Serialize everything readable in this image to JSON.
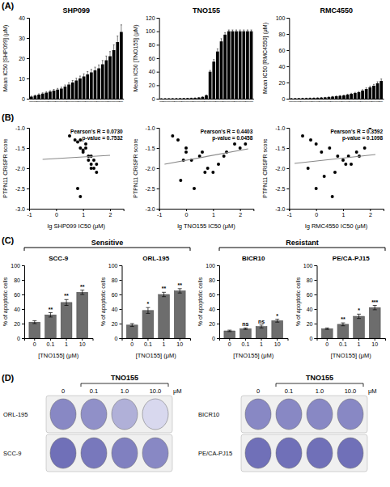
{
  "chart_data": [
    {
      "type": "bar",
      "title": "SHP099",
      "y_label": "Mean IC50 [SHP099] (μM)",
      "categories": [
        "|",
        "|",
        "|",
        "|",
        "|",
        "|",
        "|",
        "|",
        "|",
        "|",
        "|",
        "|",
        "|",
        "|",
        "|",
        "|",
        "|",
        "|",
        "|",
        "|",
        "|",
        "|",
        "|",
        "|",
        "|"
      ],
      "values": [
        1.0,
        1.5,
        2.0,
        2.5,
        3.0,
        3.5,
        4.0,
        4.5,
        5.0,
        6.0,
        7.0,
        8.0,
        9.0,
        10.0,
        11.0,
        12.0,
        13.0,
        14.0,
        15.0,
        17.0,
        19.0,
        21.0,
        24.0,
        28.0,
        33.0
      ],
      "errors": [
        0.3,
        0.3,
        0.4,
        0.4,
        0.5,
        0.5,
        0.6,
        0.6,
        0.7,
        0.8,
        0.9,
        1.0,
        1.1,
        1.2,
        1.3,
        1.4,
        1.5,
        1.6,
        1.7,
        1.9,
        2.1,
        2.3,
        2.6,
        3.0,
        3.5
      ],
      "color": "#000000",
      "ylim": [
        0,
        40
      ],
      "yticks": [
        0,
        10,
        20,
        30,
        40
      ],
      "annotations": [
        {
          "text": "(A)",
          "position": "panel"
        }
      ]
    },
    {
      "type": "bar",
      "title": "TNO155",
      "y_label": "Mean IC50 [TNO155] (μM)",
      "categories": [
        "|",
        "|",
        "|",
        "|",
        "|",
        "|",
        "|",
        "|",
        "|",
        "|",
        "|",
        "|",
        "|",
        "|",
        "|",
        "|",
        "|",
        "|",
        "|",
        "|",
        "|",
        "|",
        "|",
        "|",
        "|"
      ],
      "values": [
        0.1,
        0.15,
        0.2,
        0.25,
        0.3,
        0.4,
        0.5,
        0.6,
        0.8,
        1.0,
        1.5,
        2.5,
        5.0,
        40.0,
        55.0,
        70.0,
        85.0,
        95.0,
        100.0,
        100.0,
        100.0,
        100.0,
        100.0,
        100.0,
        100.0
      ],
      "errors": [
        0.05,
        0.05,
        0.05,
        0.05,
        0.05,
        0.05,
        0.05,
        0.05,
        0.1,
        0.1,
        0.2,
        0.3,
        0.5,
        2.0,
        3.0,
        4.0,
        4.0,
        3.0,
        2.0,
        2.0,
        2.0,
        2.0,
        2.0,
        2.0,
        2.0
      ],
      "color": "#000000",
      "ylim": [
        0,
        120
      ],
      "yticks": [
        0,
        20,
        40,
        60,
        80,
        100,
        120
      ]
    },
    {
      "type": "bar",
      "title": "RMC4550",
      "y_label": "Mean IC50 [RMC4550] (μM)",
      "categories": [
        "|",
        "|",
        "|",
        "|",
        "|",
        "|",
        "|",
        "|",
        "|",
        "|",
        "|",
        "|",
        "|",
        "|",
        "|",
        "|",
        "|",
        "|",
        "|",
        "|",
        "|",
        "|",
        "|",
        "|",
        "|"
      ],
      "values": [
        0.2,
        0.3,
        0.4,
        0.5,
        0.6,
        0.7,
        0.8,
        1.0,
        1.2,
        1.5,
        2.0,
        2.5,
        3.0,
        3.5,
        4.0,
        5.0,
        6.0,
        7.0,
        8.0,
        10.0,
        12.0,
        14.0,
        16.0,
        19.0,
        22.0
      ],
      "errors": [
        0.05,
        0.05,
        0.05,
        0.1,
        0.1,
        0.1,
        0.1,
        0.1,
        0.15,
        0.2,
        0.25,
        0.3,
        0.35,
        0.4,
        0.5,
        0.6,
        0.7,
        0.8,
        0.9,
        1.1,
        1.3,
        1.5,
        1.7,
        2.0,
        2.3
      ],
      "color": "#000000",
      "ylim": [
        0,
        100
      ],
      "yticks": [
        0,
        20,
        40,
        60,
        80,
        100
      ]
    },
    {
      "type": "scatter",
      "x_label": "lg SHP099 IC50 (μM)",
      "y_label": "PTPN11 CRISPR score",
      "xlim": [
        -1,
        2.5
      ],
      "ylim": [
        -3.0,
        -1.0
      ],
      "xticks": [
        -1,
        0,
        1,
        2
      ],
      "yticks": [
        {
          "value": -1.0,
          "label": "-1.0"
        },
        -1.5,
        {
          "value": -2.0,
          "label": "-2.0"
        },
        -2.5,
        {
          "value": -3.0,
          "label": "-3.0"
        }
      ],
      "series": [
        {
          "type": "scatter",
          "color": "#000000",
          "x": [
            0.5,
            0.7,
            0.8,
            0.9,
            0.9,
            1.0,
            1.0,
            1.1,
            1.1,
            1.2,
            1.2,
            1.3,
            1.3,
            1.3,
            1.4,
            1.4,
            1.5,
            1.5,
            0.8,
            0.9
          ],
          "values": [
            -1.2,
            -1.3,
            -1.35,
            -1.3,
            -1.5,
            -1.55,
            -1.6,
            -1.4,
            -1.5,
            -1.7,
            -1.8,
            -1.7,
            -1.9,
            -2.0,
            -1.8,
            -2.0,
            -1.9,
            -2.1,
            -2.5,
            -2.7
          ]
        },
        {
          "type": "line",
          "color": "#888888",
          "x": [
            -0.5,
            2.0
          ],
          "values": [
            -1.78,
            -1.68
          ]
        }
      ],
      "annotations": [
        {
          "text": "(B)",
          "position": "panel"
        },
        {
          "text": "Pearson's R = 0.0730",
          "position": "corner"
        },
        {
          "text": "p-value = 0.7532",
          "position": "corner"
        }
      ]
    },
    {
      "type": "scatter",
      "x_label": "lg TNO155 IC50 (μM)",
      "y_label": "PTPN11 CRISPR score",
      "xlim": [
        -1,
        2.5
      ],
      "ylim": [
        -3.0,
        -1.0
      ],
      "xticks": [
        -1,
        0,
        1,
        2
      ],
      "yticks": [
        {
          "value": -1.0,
          "label": "-1.0"
        },
        -1.5,
        {
          "value": -2.0,
          "label": "-2.0"
        },
        -2.5,
        {
          "value": -3.0,
          "label": "-3.0"
        }
      ],
      "series": [
        {
          "type": "scatter",
          "color": "#000000",
          "x": [
            -0.5,
            -0.3,
            0.0,
            0.0,
            0.2,
            0.5,
            0.8,
            1.0,
            1.5,
            2.0,
            2.2,
            -0.2,
            0.3,
            1.2,
            1.8,
            0.7,
            -0.1,
            0.6,
            1.4
          ],
          "values": [
            -1.2,
            -1.3,
            -1.5,
            -1.6,
            -1.8,
            -1.7,
            -2.0,
            -2.1,
            -1.6,
            -1.5,
            -1.4,
            -2.3,
            -2.5,
            -1.9,
            -1.4,
            -2.1,
            -1.8,
            -1.6,
            -1.7
          ]
        },
        {
          "type": "line",
          "color": "#888888",
          "x": [
            -0.8,
            2.3
          ],
          "values": [
            -1.9,
            -1.52
          ]
        }
      ],
      "annotations": [
        {
          "text": "Pearson's R = 0.4403",
          "position": "corner"
        },
        {
          "text": "p-value = 0.0458",
          "position": "corner"
        }
      ]
    },
    {
      "type": "scatter",
      "x_label": "lg RMC4550 IC50 (μM)",
      "y_label": "PTPN11 CRISPR score",
      "xlim": [
        -1,
        2.5
      ],
      "ylim": [
        -3.0,
        -1.0
      ],
      "xticks": [
        -1,
        0,
        1,
        2
      ],
      "yticks": [
        {
          "value": -1.0,
          "label": "-1.0"
        },
        -1.5,
        {
          "value": -2.0,
          "label": "-2.0"
        },
        -2.5,
        {
          "value": -3.0,
          "label": "-3.0"
        }
      ],
      "series": [
        {
          "type": "scatter",
          "color": "#000000",
          "x": [
            -0.5,
            -0.2,
            0.0,
            0.2,
            0.5,
            0.8,
            1.0,
            1.2,
            1.5,
            1.8,
            -0.3,
            0.3,
            0.7,
            1.1,
            1.6,
            0.0,
            0.6,
            1.3,
            2.0
          ],
          "values": [
            -1.2,
            -1.3,
            -1.4,
            -1.6,
            -1.5,
            -1.7,
            -1.8,
            -1.7,
            -1.6,
            -1.5,
            -2.0,
            -2.2,
            -2.1,
            -1.9,
            -1.7,
            -2.5,
            -2.7,
            -1.9,
            -1.0
          ]
        },
        {
          "type": "line",
          "color": "#888888",
          "x": [
            -0.8,
            2.2
          ],
          "values": [
            -1.88,
            -1.66
          ]
        }
      ],
      "annotations": [
        {
          "text": "Pearson's R = 0.3592",
          "position": "corner"
        },
        {
          "text": "p-value = 0.1098",
          "position": "corner"
        }
      ]
    },
    {
      "type": "bar",
      "title": "SCC-9",
      "x_label": "[TNO155] (μM)",
      "y_label": "% of apoptotic cells",
      "categories": [
        "0",
        "0.1",
        "1",
        "10"
      ],
      "values": [
        22,
        32,
        49,
        63
      ],
      "errors": [
        2,
        3,
        4,
        3
      ],
      "color": "#6d6d6d",
      "ylim": [
        0,
        100
      ],
      "yticks": [
        0,
        20,
        40,
        60,
        80,
        100
      ],
      "annotations": [
        {
          "text": "(C)",
          "position": "panel"
        },
        {
          "text": "Sensitive",
          "position": "bracket"
        },
        {
          "x": "0.1",
          "text": "**"
        },
        {
          "x": "1",
          "text": "**"
        },
        {
          "x": "10",
          "text": "**"
        }
      ]
    },
    {
      "type": "bar",
      "title": "ORL-195",
      "x_label": "[TNO155] (μM)",
      "y_label": "% of apoptotic cells",
      "categories": [
        "0",
        "0.1",
        "1",
        "10"
      ],
      "values": [
        18,
        38,
        60,
        65
      ],
      "errors": [
        2,
        4,
        3,
        3
      ],
      "color": "#6d6d6d",
      "ylim": [
        0,
        100
      ],
      "yticks": [
        0,
        20,
        40,
        60,
        80,
        100
      ],
      "annotations": [
        {
          "x": "0.1",
          "text": "*"
        },
        {
          "x": "1",
          "text": "**"
        },
        {
          "x": "10",
          "text": "**"
        }
      ]
    },
    {
      "type": "bar",
      "title": "BICR10",
      "x_label": "[TNO155] (μM)",
      "y_label": "% of apoptotic cells",
      "categories": [
        "0",
        "0.1",
        "1",
        "10"
      ],
      "values": [
        10,
        13,
        16,
        24
      ],
      "errors": [
        1,
        1,
        2,
        2
      ],
      "color": "#6d6d6d",
      "ylim": [
        0,
        100
      ],
      "yticks": [
        0,
        20,
        40,
        60,
        80,
        100
      ],
      "annotations": [
        {
          "text": "Resistant",
          "position": "bracket"
        },
        {
          "x": "0.1",
          "text": "ns"
        },
        {
          "x": "1",
          "text": "ns"
        },
        {
          "x": "10",
          "text": "*"
        }
      ]
    },
    {
      "type": "bar",
      "title": "PE/CA-PJ15",
      "x_label": "[TNO155] (μM)",
      "y_label": "% of apoptotic cells",
      "categories": [
        "0",
        "0.1",
        "1",
        "10"
      ],
      "values": [
        13,
        19,
        30,
        42
      ],
      "errors": [
        1,
        2,
        3,
        3
      ],
      "color": "#6d6d6d",
      "ylim": [
        0,
        100
      ],
      "yticks": [
        0,
        20,
        40,
        60,
        80,
        100
      ],
      "annotations": [
        {
          "x": "0.1",
          "text": "**"
        },
        {
          "x": "1",
          "text": "*"
        },
        {
          "x": "10",
          "text": "***"
        }
      ]
    },
    {
      "type": "wells",
      "title": "TNO155",
      "x_label": "μM",
      "categories": [
        "0",
        "0.1",
        "1.0",
        "10.0"
      ],
      "series": [
        {
          "name": "ORL-195",
          "colors": [
            "#8888c4",
            "#9090c8",
            "#b0b0d8",
            "#d8d8ee"
          ]
        },
        {
          "name": "SCC-9",
          "colors": [
            "#7070b8",
            "#7878bc",
            "#8080c0",
            "#8888c4"
          ]
        }
      ],
      "annotations": [
        {
          "text": "(D)",
          "position": "panel"
        }
      ]
    },
    {
      "type": "wells",
      "title": "TNO155",
      "x_label": "μM",
      "categories": [
        "0",
        "0.1",
        "1.0",
        "10.0"
      ],
      "series": [
        {
          "name": "BICR10",
          "colors": [
            "#8888c4",
            "#8888c4",
            "#8888c4",
            "#8888c4"
          ]
        },
        {
          "name": "PE/CA-PJ15",
          "colors": [
            "#7070b8",
            "#7070b8",
            "#7070b8",
            "#7070b8"
          ]
        }
      ]
    }
  ]
}
